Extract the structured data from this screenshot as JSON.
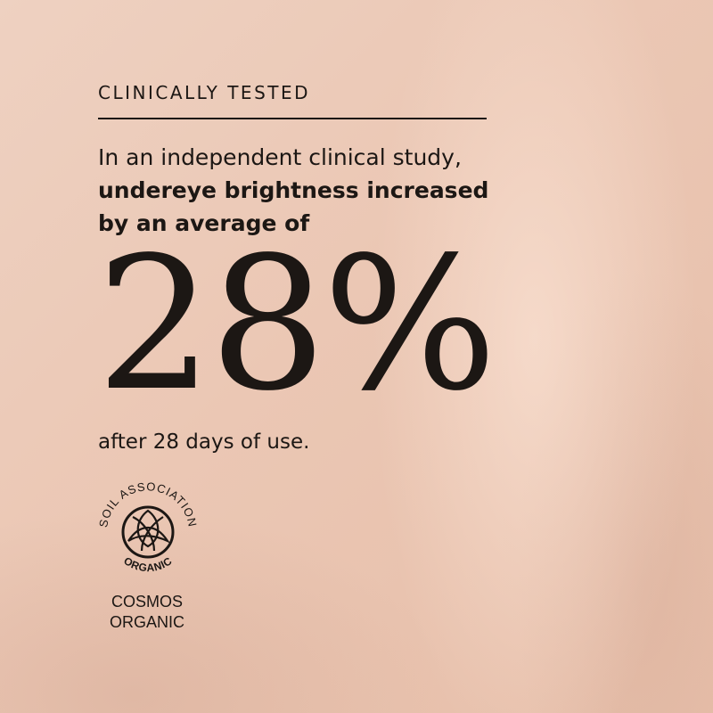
{
  "heading": "CLINICALLY TESTED",
  "body": {
    "intro": "In an independent clinical study,",
    "bold_line1": "undereye brightness increased",
    "bold_line2": "by an average of"
  },
  "stat": "28%",
  "footnote": "after 28 days of use.",
  "badge": {
    "logo_text_top": "SOIL ASSOCIATION",
    "logo_text_bottom": "ORGANIC",
    "cert_line1": "COSMOS",
    "cert_line2": "ORGANIC"
  },
  "colors": {
    "background": "#ebc7b4",
    "text": "#1c1714"
  }
}
